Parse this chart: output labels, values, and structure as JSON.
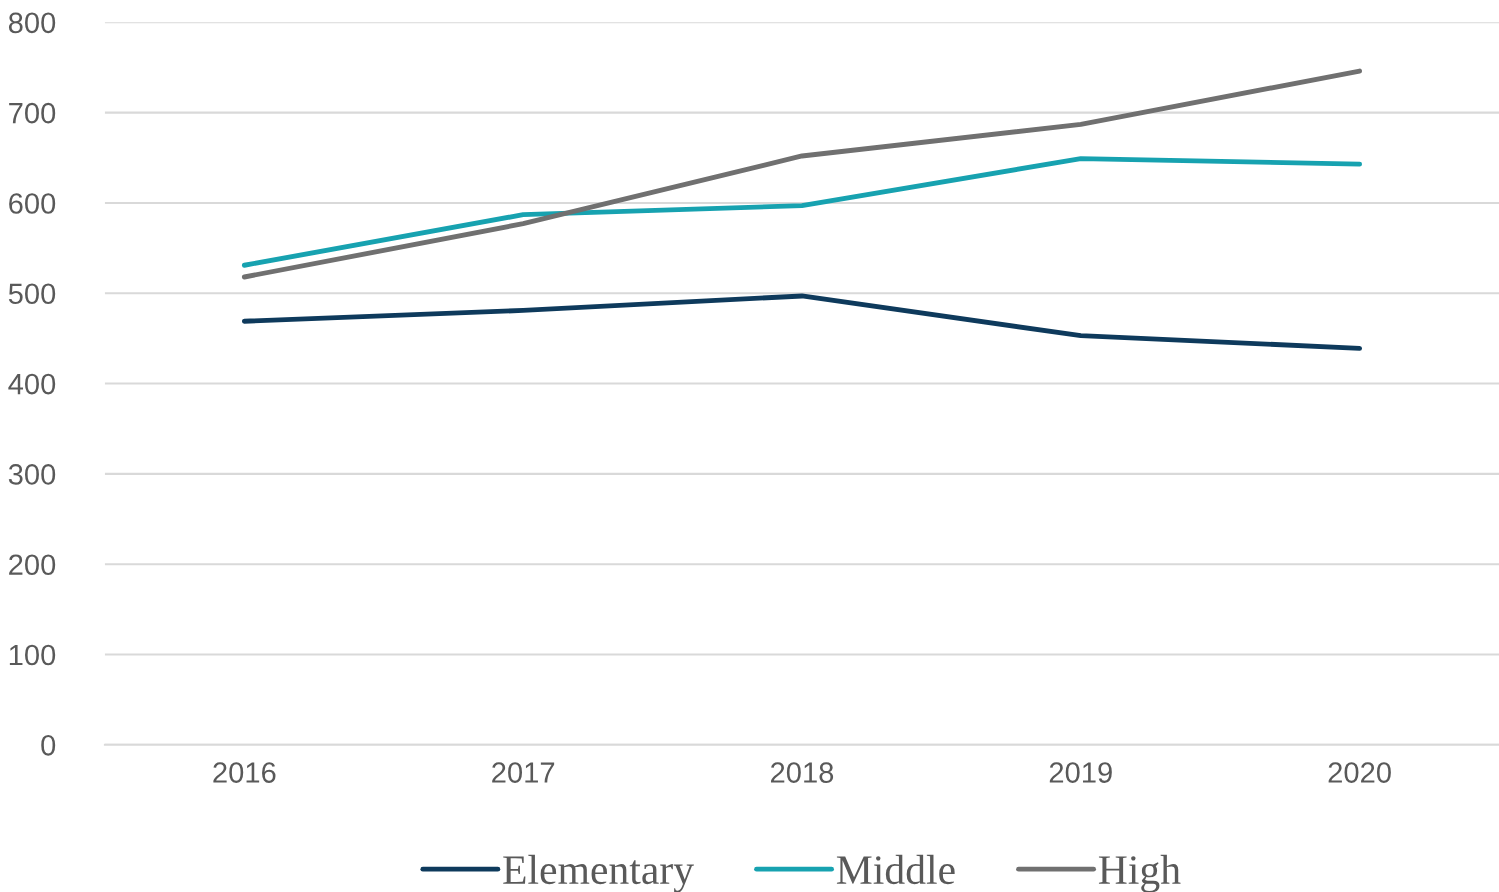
{
  "chart_data": {
    "type": "line",
    "categories": [
      "2016",
      "2017",
      "2018",
      "2019",
      "2020"
    ],
    "series": [
      {
        "name": "Elementary",
        "color": "#0e3a5c",
        "values": [
          469,
          481,
          497,
          453,
          439
        ]
      },
      {
        "name": "Middle",
        "color": "#17a2b0",
        "values": [
          531,
          587,
          597,
          649,
          643
        ]
      },
      {
        "name": "High",
        "color": "#707070",
        "values": [
          518,
          577,
          652,
          687,
          746
        ]
      }
    ],
    "ylim": [
      0,
      800
    ],
    "yticks": [
      0,
      100,
      200,
      300,
      400,
      500,
      600,
      700,
      800
    ],
    "grid": "y",
    "legend": "bottom",
    "marker": "none",
    "line_style": "solid"
  }
}
